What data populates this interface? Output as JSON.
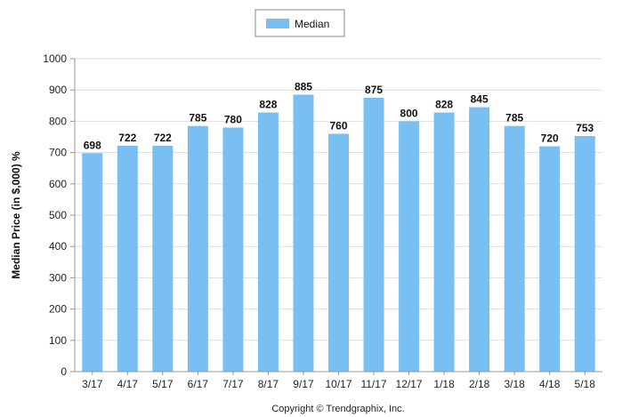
{
  "chart_data": {
    "type": "bar",
    "categories": [
      "3/17",
      "4/17",
      "5/17",
      "6/17",
      "7/17",
      "8/17",
      "9/17",
      "10/17",
      "11/17",
      "12/17",
      "1/18",
      "2/18",
      "3/18",
      "4/18",
      "5/18"
    ],
    "series": [
      {
        "name": "Median",
        "values": [
          698,
          722,
          722,
          785,
          780,
          828,
          885,
          760,
          875,
          800,
          828,
          845,
          785,
          720,
          753
        ]
      }
    ],
    "ylabel": "Median Price (in $,000) %",
    "xlabel": "",
    "ylim": [
      0,
      1000
    ],
    "yticks": [
      0,
      100,
      200,
      300,
      400,
      500,
      600,
      700,
      800,
      900,
      1000
    ],
    "grid": true,
    "legend_position": "top-center",
    "bar_color": "#79bff2"
  },
  "footer": {
    "copyright": "Copyright © Trendgraphix, Inc."
  }
}
